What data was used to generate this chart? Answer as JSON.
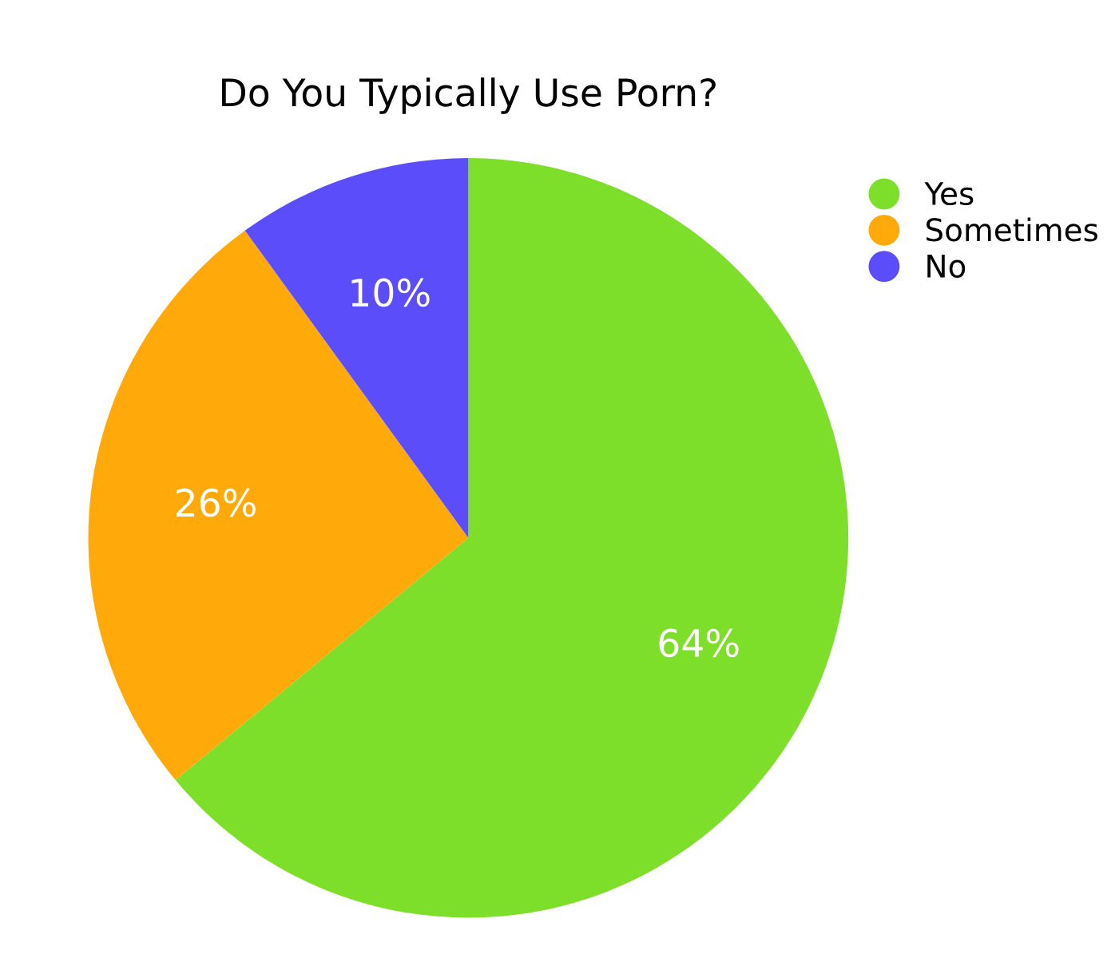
{
  "chart_data": {
    "type": "pie",
    "title": "Do You Typically Use Porn?",
    "categories": [
      "Yes",
      "Sometimes",
      "No"
    ],
    "values": [
      64,
      26,
      10
    ],
    "colors": [
      "#7ddf2a",
      "#ffa90a",
      "#5c4dfb"
    ],
    "value_labels": [
      "64%",
      "26%",
      "10%"
    ],
    "legend": "top right"
  }
}
